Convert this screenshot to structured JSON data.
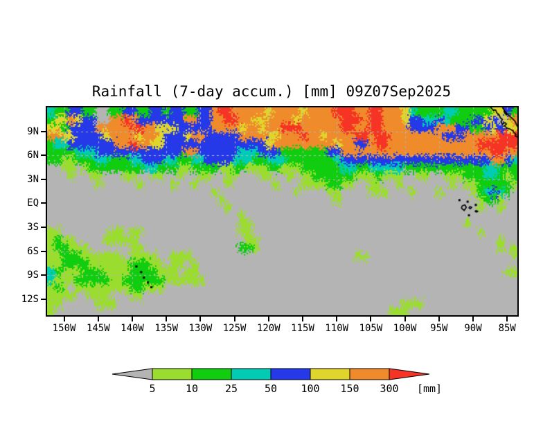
{
  "title": "Rainfall (7-day accum.) [mm] 09Z07Sep2025",
  "axes": {
    "y_ticks": [
      {
        "label": "9N",
        "lat": 9
      },
      {
        "label": "6N",
        "lat": 6
      },
      {
        "label": "3N",
        "lat": 3
      },
      {
        "label": "EQ",
        "lat": 0
      },
      {
        "label": "3S",
        "lat": -3
      },
      {
        "label": "6S",
        "lat": -6
      },
      {
        "label": "9S",
        "lat": -9
      },
      {
        "label": "12S",
        "lat": -12
      }
    ],
    "x_ticks": [
      {
        "label": "150W",
        "lon": -150
      },
      {
        "label": "145W",
        "lon": -145
      },
      {
        "label": "140W",
        "lon": -140
      },
      {
        "label": "135W",
        "lon": -135
      },
      {
        "label": "130W",
        "lon": -130
      },
      {
        "label": "125W",
        "lon": -125
      },
      {
        "label": "120W",
        "lon": -120
      },
      {
        "label": "115W",
        "lon": -115
      },
      {
        "label": "110W",
        "lon": -110
      },
      {
        "label": "105W",
        "lon": -105
      },
      {
        "label": "100W",
        "lon": -100
      },
      {
        "label": "95W",
        "lon": -95
      },
      {
        "label": "90W",
        "lon": -90
      },
      {
        "label": "85W",
        "lon": -85
      }
    ]
  },
  "colorbar": {
    "tick_labels": [
      "5",
      "10",
      "25",
      "50",
      "100",
      "150",
      "300"
    ],
    "unit_label": "[mm]",
    "left_arrow_color": "#b4b4b4",
    "segment_colors": [
      "#9add2e",
      "#10cd10",
      "#00ccb4",
      "#2539e8",
      "#e0d52b",
      "#ef8b2b"
    ],
    "right_arrow_color": "#f63426"
  },
  "chart_data": {
    "type": "heatmap",
    "title": "Rainfall (7-day accum.) [mm] 09Z07Sep2025",
    "variable": "rainfall_7day_accumulation",
    "units": "mm",
    "lon_west": -152.5,
    "lon_east": -83.5,
    "lat_north": 12,
    "lat_south": -14,
    "grid_resolution_deg": 1,
    "level_edges_mm": [
      0,
      5,
      10,
      25,
      50,
      100,
      150,
      300
    ],
    "level_colors": [
      "#b4b4b4",
      "#9add2e",
      "#10cd10",
      "#00ccb4",
      "#2539e8",
      "#e0d52b",
      "#ef8b2b",
      "#f63426"
    ],
    "gridlines": {
      "lon_interval_deg": 5,
      "lat_interval_deg": 3,
      "style": "dotted",
      "color": "#b4b4b4"
    },
    "grid_rows_north_to_south": [
      "322442200224422442442244677666665666656666777667766653222233222225542",
      "255654400667644444446644667766556666566666677767766654433432224454 56",
      "552444466666776655544444666656656677766666677667766664444666442245455",
      "665544445666656654445664444466665566676656666776776666666644466666777",
      "233444444466766554444444444444445666666666566446776666666666666777777",
      "222233344444444444446644444433344422222224466666666666666666666667766",
      "221122233222334443322334444333223332222222344444444444444444444446643",
      "001101222222223322211222211221112211122222233223333322222222222233222",
      "000100110001100110010011001100011001011222222111211100110011122233212",
      "000000010000010000100100001000000100011112211001100100000001011222221",
      "000000000000000000000000100000000000100001100001110001000100001234320",
      "000000000000000000000000010000000000000000100000000000000000000122100",
      "000000000000000000000000001000000000000000000000000000000000000100100",
      "000000000000000000000000000010000000000000000000000000000000000000000",
      "000000000000000000000000000011000000000000000000000000000000010000000",
      "110000000110110000000000000011000000000000000000000000000000000100000",
      "121100001111100000000000000001100000000000000000000000000000000000100",
      "122111000000110000000000000022100000000000000000000000000000000000101",
      "112221111110111100111000000000000000000000000110000000000000000000001",
      "112222111111222110110100000000000000000000000000000000000000000000000",
      "321112221111222211101100000000000000000000000000000000000000000000011",
      "311122222112222221111110000000000000000000000000000000000000000000000",
      "121011111111221110000000000000000000000000000000000000000000000000000",
      "111100111000110000000000000000000000000000000000000000000000000000000",
      "110000011100000000000000000000000000000000000000000011100000000000000",
      "100000000000000000000000000000000000000000000000001110000000000000000"
    ],
    "overlays": {
      "coastlines": [
        [
          [
            -87.4,
            12.0
          ],
          [
            -87.0,
            11.6
          ],
          [
            -86.7,
            11.7
          ],
          [
            -86.5,
            11.3
          ],
          [
            -86.2,
            11.1
          ],
          [
            -86.0,
            10.7
          ],
          [
            -85.7,
            10.5
          ],
          [
            -85.9,
            10.2
          ],
          [
            -85.7,
            9.9
          ],
          [
            -85.3,
            10.1
          ],
          [
            -85.1,
            9.9
          ],
          [
            -85.4,
            9.7
          ],
          [
            -85.0,
            9.4
          ],
          [
            -84.6,
            9.3
          ],
          [
            -84.2,
            9.1
          ],
          [
            -83.9,
            8.8
          ],
          [
            -83.7,
            8.6
          ],
          [
            -83.8,
            8.4
          ],
          [
            -83.5,
            8.3
          ]
        ],
        [
          [
            -85.7,
            12.0
          ],
          [
            -85.3,
            11.5
          ],
          [
            -84.9,
            11.1
          ],
          [
            -84.5,
            10.8
          ],
          [
            -84.1,
            10.5
          ],
          [
            -83.8,
            10.2
          ],
          [
            -83.6,
            9.8
          ],
          [
            -83.5,
            9.6
          ]
        ],
        [
          [
            -85.5,
            11.6
          ],
          [
            -85.2,
            11.4
          ],
          [
            -85.0,
            11.1
          ],
          [
            -85.3,
            11.2
          ],
          [
            -85.5,
            11.6
          ]
        ]
      ],
      "island_outlines": [
        [
          [
            -91.6,
            -0.3
          ],
          [
            -91.2,
            -0.2
          ],
          [
            -91.0,
            -0.5
          ],
          [
            -91.3,
            -0.9
          ],
          [
            -91.7,
            -0.6
          ],
          [
            -91.6,
            -0.3
          ]
        ],
        [
          [
            -90.5,
            -0.4
          ],
          [
            -90.2,
            -0.5
          ],
          [
            -90.4,
            -0.7
          ],
          [
            -90.6,
            -0.6
          ],
          [
            -90.5,
            -0.4
          ]
        ],
        [
          [
            -89.6,
            -0.9
          ],
          [
            -89.3,
            -1.0
          ],
          [
            -89.5,
            -1.1
          ],
          [
            -89.7,
            -1.0
          ],
          [
            -89.6,
            -0.9
          ]
        ]
      ],
      "island_dots": [
        [
          -92.0,
          0.4
        ],
        [
          -90.8,
          0.2
        ],
        [
          -90.6,
          -1.5
        ],
        [
          -89.6,
          -0.2
        ],
        [
          -139.4,
          -7.9
        ],
        [
          -138.7,
          -8.6
        ],
        [
          -138.3,
          -9.3
        ],
        [
          -137.7,
          -9.9
        ],
        [
          -137.2,
          -10.5
        ]
      ]
    }
  }
}
